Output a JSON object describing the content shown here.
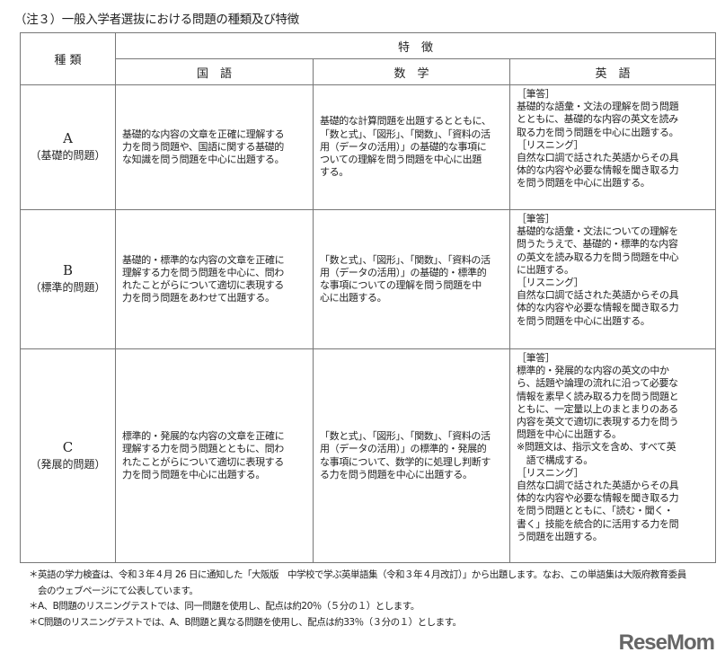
{
  "title": "（注３）一般入学者選抜における問題の種類及び特徴",
  "table": {
    "header_kind": "種 類",
    "header_features": "特　徴",
    "subjects": [
      "国　語",
      "数　学",
      "英　語"
    ],
    "rows": [
      {
        "letter": "A",
        "label": "（基礎的問題）",
        "japanese": "基礎的な内容の文章を正確に理解する\n力を問う問題や、国語に関する基礎的\nな知識を問う問題を中心に出題する。",
        "math": "基礎的な計算問題を出題するとともに、\n「数と式」、「図形」、「関数」、「資料の活\n用（データの活用）」の基礎的な事項に\nついての理解を問う問題を中心に出題\nする。",
        "english": "［筆答］\n基礎的な語彙・文法の理解を問う問題\nとともに、基礎的な内容の英文を読み\n取る力を問う問題を中心に出題する。\n［リスニング］\n自然な口調で話された英語からその具\n体的な内容や必要な情報を聞き取る力\nを問う問題を中心に出題する。"
      },
      {
        "letter": "B",
        "label": "（標準的問題）",
        "japanese": "基礎的・標準的な内容の文章を正確に\n理解する力を問う問題を中心に、問わ\nれたことがらについて適切に表現する\n力を問う問題をあわせて出題する。",
        "math": "「数と式」、「図形」、「関数」、「資料の活\n用（データの活用）」の基礎的・標準的\nな事項についての理解を問う問題を中\n心に出題する。",
        "english": "［筆答］\n基礎的な語彙・文法についての理解を\n問うたうえで、基礎的・標準的な内容\nの英文を読み取る力を問う問題を中心\nに出題する。\n［リスニング］\n自然な口調で話された英語からその具\n体的な内容や必要な情報を聞き取る力\nを問う問題を中心に出題する。"
      },
      {
        "letter": "C",
        "label": "（発展的問題）",
        "japanese": "標準的・発展的な内容の文章を正確に\n理解する力を問う問題とともに、問わ\nれたことがらについて適切に表現する\n力を問う問題を中心に出題する。",
        "math": "「数と式」、「図形」、「関数」、「資料の活\n用（データの活用）」の標準的・発展的\nな事項について、数学的に処理し判断す\nる力を問う問題を中心に出題する。",
        "english": "［筆答］\n標準的・発展的な内容の英文の中か\nら、話題や論理の流れに沿って必要な\n情報を素早く読み取る力を問う問題と\nともに、一定量以上のまとまりのある\n内容を英文で適切に表現する力を問う\n問題を中心に出題する。\n※問題文は、指示文を含め、すべて英\n　語で構成する。\n［リスニング］\n自然な口調で話された英語からその具\n体的な内容や必要な情報を聞き取る力\nを問う問題とともに、「読む・聞く・\n書く」技能を統合的に活用する力を問\nう問題を出題する。"
      }
    ]
  },
  "notes": [
    "＊英語の学力検査は、令和３年４月 26 日に通知した「大阪版　中学校で学ぶ英単語集（令和３年４月改訂）」から出題します。なお、この単語集は大阪府教育委員\n　会のウェブページにて公表しています。",
    "＊A、B問題のリスニングテストでは、同一問題を使用し、配点は約20％（５分の１）とします。",
    "＊C問題のリスニングテストでは、A、B問題と異なる問題を使用し、配点は約33％（３分の１）とします。"
  ],
  "logo": "ReseMom"
}
